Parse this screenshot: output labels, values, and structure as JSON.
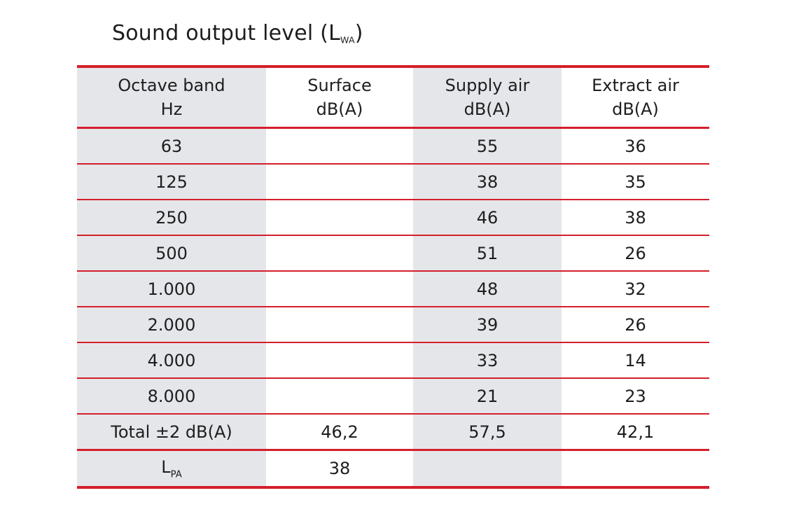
{
  "title": {
    "text": "Sound output level (L",
    "sub": "WA",
    "close": ")"
  },
  "table": {
    "headers": [
      {
        "line1": "Octave band",
        "line2": "Hz"
      },
      {
        "line1": "Surface",
        "line2": "dB(A)"
      },
      {
        "line1": "Supply air",
        "line2": "dB(A)"
      },
      {
        "line1": "Extract air",
        "line2": "dB(A)"
      }
    ],
    "rows": [
      [
        "63",
        "",
        "55",
        "36"
      ],
      [
        "125",
        "",
        "38",
        "35"
      ],
      [
        "250",
        "",
        "46",
        "38"
      ],
      [
        "500",
        "",
        "51",
        "26"
      ],
      [
        "1.000",
        "",
        "48",
        "32"
      ],
      [
        "2.000",
        "",
        "39",
        "26"
      ],
      [
        "4.000",
        "",
        "33",
        "14"
      ],
      [
        "8.000",
        "",
        "21",
        "23"
      ]
    ],
    "total": [
      "Total ±2 dB(A)",
      "46,2",
      "57,5",
      "42,1"
    ],
    "lpa": {
      "label": "L",
      "sub": "PA",
      "values": [
        "38",
        "",
        ""
      ]
    }
  },
  "colors": {
    "accent_red": "#d41f2b",
    "shaded_column": "#e5e6ea"
  }
}
